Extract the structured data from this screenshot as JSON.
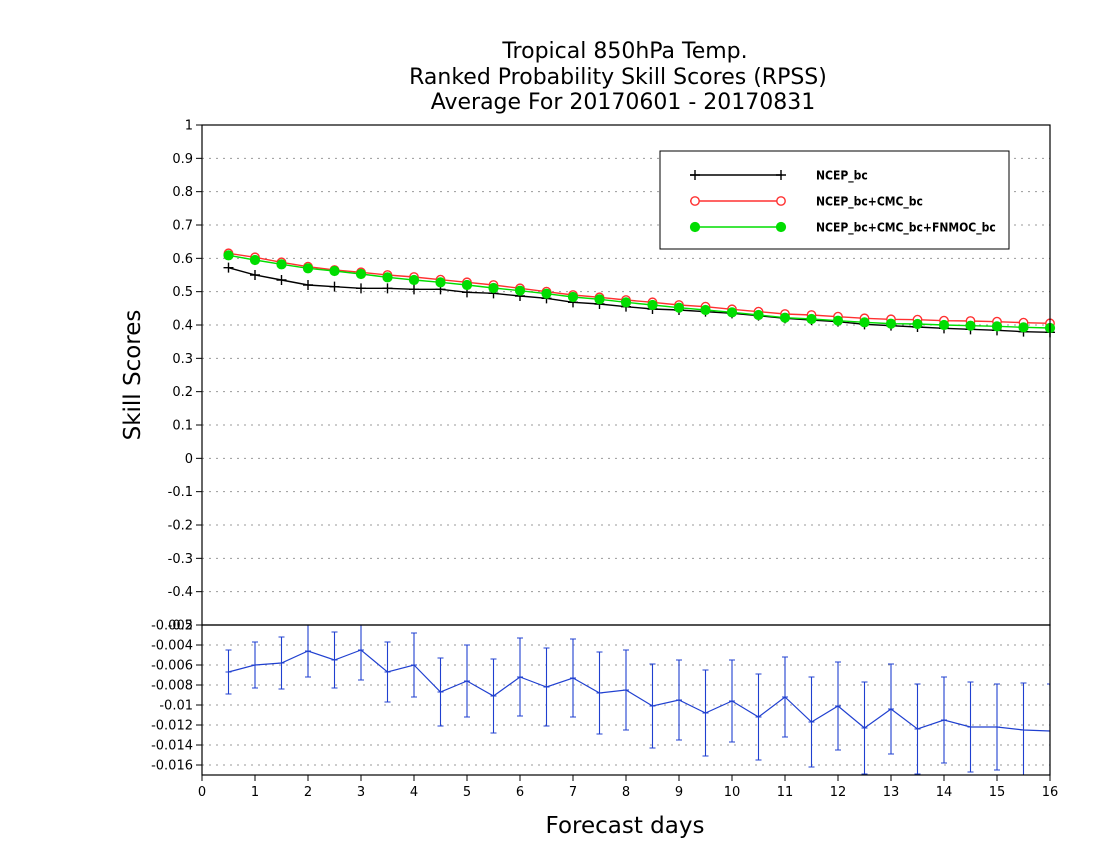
{
  "chart_data": [
    {
      "type": "line",
      "title": [
        "Tropical 850hPa Temp.",
        "Ranked Probability Skill Scores (RPSS)",
        "Average For 20170601 - 20170831"
      ],
      "xlabel": "Forecast days",
      "ylabel": "Skill Scores",
      "xlim": [
        0,
        16
      ],
      "ylim": [
        -0.5,
        1
      ],
      "xticks": [
        "0",
        "1",
        "2",
        "3",
        "4",
        "5",
        "6",
        "7",
        "8",
        "9",
        "10",
        "11",
        "12",
        "13",
        "14",
        "15",
        "16"
      ],
      "yticks": [
        "-0.5",
        "-0.4",
        "-0.3",
        "-0.2",
        "-0.1",
        "0",
        "0.1",
        "0.2",
        "0.3",
        "0.4",
        "0.5",
        "0.6",
        "0.7",
        "0.8",
        "0.9",
        "1"
      ],
      "grid": true,
      "legend_position": "top-right",
      "x": [
        0.5,
        1,
        1.5,
        2,
        2.5,
        3,
        3.5,
        4,
        4.5,
        5,
        5.5,
        6,
        6.5,
        7,
        7.5,
        8,
        8.5,
        9,
        9.5,
        10,
        10.5,
        11,
        11.5,
        12,
        12.5,
        13,
        13.5,
        14,
        14.5,
        15,
        15.5,
        16
      ],
      "series": [
        {
          "name": "NCEP_bc",
          "color": "#000000",
          "marker": "plus",
          "values": [
            0.572,
            0.55,
            0.535,
            0.52,
            0.515,
            0.51,
            0.51,
            0.507,
            0.507,
            0.498,
            0.495,
            0.487,
            0.48,
            0.468,
            0.463,
            0.455,
            0.448,
            0.445,
            0.44,
            0.435,
            0.428,
            0.42,
            0.415,
            0.41,
            0.402,
            0.398,
            0.394,
            0.39,
            0.387,
            0.384,
            0.38,
            0.378
          ]
        },
        {
          "name": "NCEP_bc+CMC_bc",
          "color": "#ff3030",
          "marker": "open-circle",
          "values": [
            0.615,
            0.603,
            0.588,
            0.575,
            0.565,
            0.558,
            0.55,
            0.544,
            0.536,
            0.528,
            0.52,
            0.51,
            0.5,
            0.49,
            0.483,
            0.475,
            0.468,
            0.46,
            0.455,
            0.447,
            0.44,
            0.433,
            0.43,
            0.425,
            0.42,
            0.417,
            0.416,
            0.413,
            0.412,
            0.41,
            0.407,
            0.405
          ]
        },
        {
          "name": "NCEP_bc+CMC_bc+FNMOC_bc",
          "color": "#00dd00",
          "marker": "filled-circle",
          "values": [
            0.609,
            0.595,
            0.582,
            0.57,
            0.562,
            0.553,
            0.543,
            0.535,
            0.528,
            0.52,
            0.511,
            0.503,
            0.494,
            0.484,
            0.477,
            0.468,
            0.46,
            0.452,
            0.445,
            0.438,
            0.43,
            0.422,
            0.418,
            0.413,
            0.408,
            0.404,
            0.403,
            0.4,
            0.398,
            0.396,
            0.393,
            0.391
          ]
        }
      ]
    },
    {
      "type": "line",
      "ylim": [
        -0.017,
        -0.002
      ],
      "xlim": [
        0,
        16
      ],
      "yticks": [
        "-0.016",
        "-0.014",
        "-0.012",
        "-0.01",
        "-0.008",
        "-0.006",
        "-0.004",
        "-0.002"
      ],
      "grid": true,
      "series": [
        {
          "color": "#2040d0",
          "marker": "error-bar",
          "x": [
            0.5,
            1,
            1.5,
            2,
            2.5,
            3,
            3.5,
            4,
            4.5,
            5,
            5.5,
            6,
            6.5,
            7,
            7.5,
            8,
            8.5,
            9,
            9.5,
            10,
            10.5,
            11,
            11.5,
            12,
            12.5,
            13,
            13.5,
            14,
            14.5,
            15,
            15.5,
            16
          ],
          "values": [
            -0.0067,
            -0.006,
            -0.0058,
            -0.0046,
            -0.0055,
            -0.0045,
            -0.0067,
            -0.006,
            -0.0087,
            -0.0076,
            -0.0091,
            -0.0072,
            -0.0082,
            -0.0073,
            -0.0088,
            -0.0085,
            -0.0101,
            -0.0095,
            -0.0108,
            -0.0096,
            -0.0112,
            -0.0092,
            -0.0117,
            -0.0101,
            -0.0123,
            -0.0104,
            -0.0124,
            -0.0115,
            -0.0122,
            -0.0122,
            -0.0125,
            -0.0126
          ],
          "errors": [
            0.0022,
            0.0023,
            0.0026,
            0.0026,
            0.0028,
            0.003,
            0.003,
            0.0032,
            0.0034,
            0.0036,
            0.0037,
            0.0039,
            0.0039,
            0.0039,
            0.0041,
            0.004,
            0.0042,
            0.004,
            0.0043,
            0.0041,
            0.0043,
            0.004,
            0.0045,
            0.0044,
            0.0046,
            0.0045,
            0.0045,
            0.0043,
            0.0045,
            0.0043,
            0.0047,
            0.0047
          ]
        }
      ]
    }
  ]
}
